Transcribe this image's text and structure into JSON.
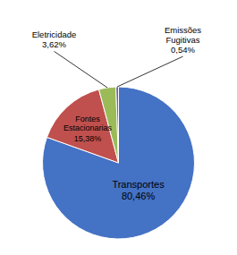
{
  "chart_data": {
    "type": "pie",
    "categories": [
      "Transportes",
      "Fontes\nEstacionarias",
      "Eletricidade",
      "Emissões\nFugitivas"
    ],
    "values": [
      80.46,
      15.38,
      3.62,
      0.54
    ],
    "value_labels": [
      "80,46%",
      "15,38%",
      "3,62%",
      "0,54%"
    ],
    "colors": [
      "#4472C4",
      "#C0504D",
      "#9BBB59",
      "#7060A0"
    ],
    "data_labels": true
  }
}
